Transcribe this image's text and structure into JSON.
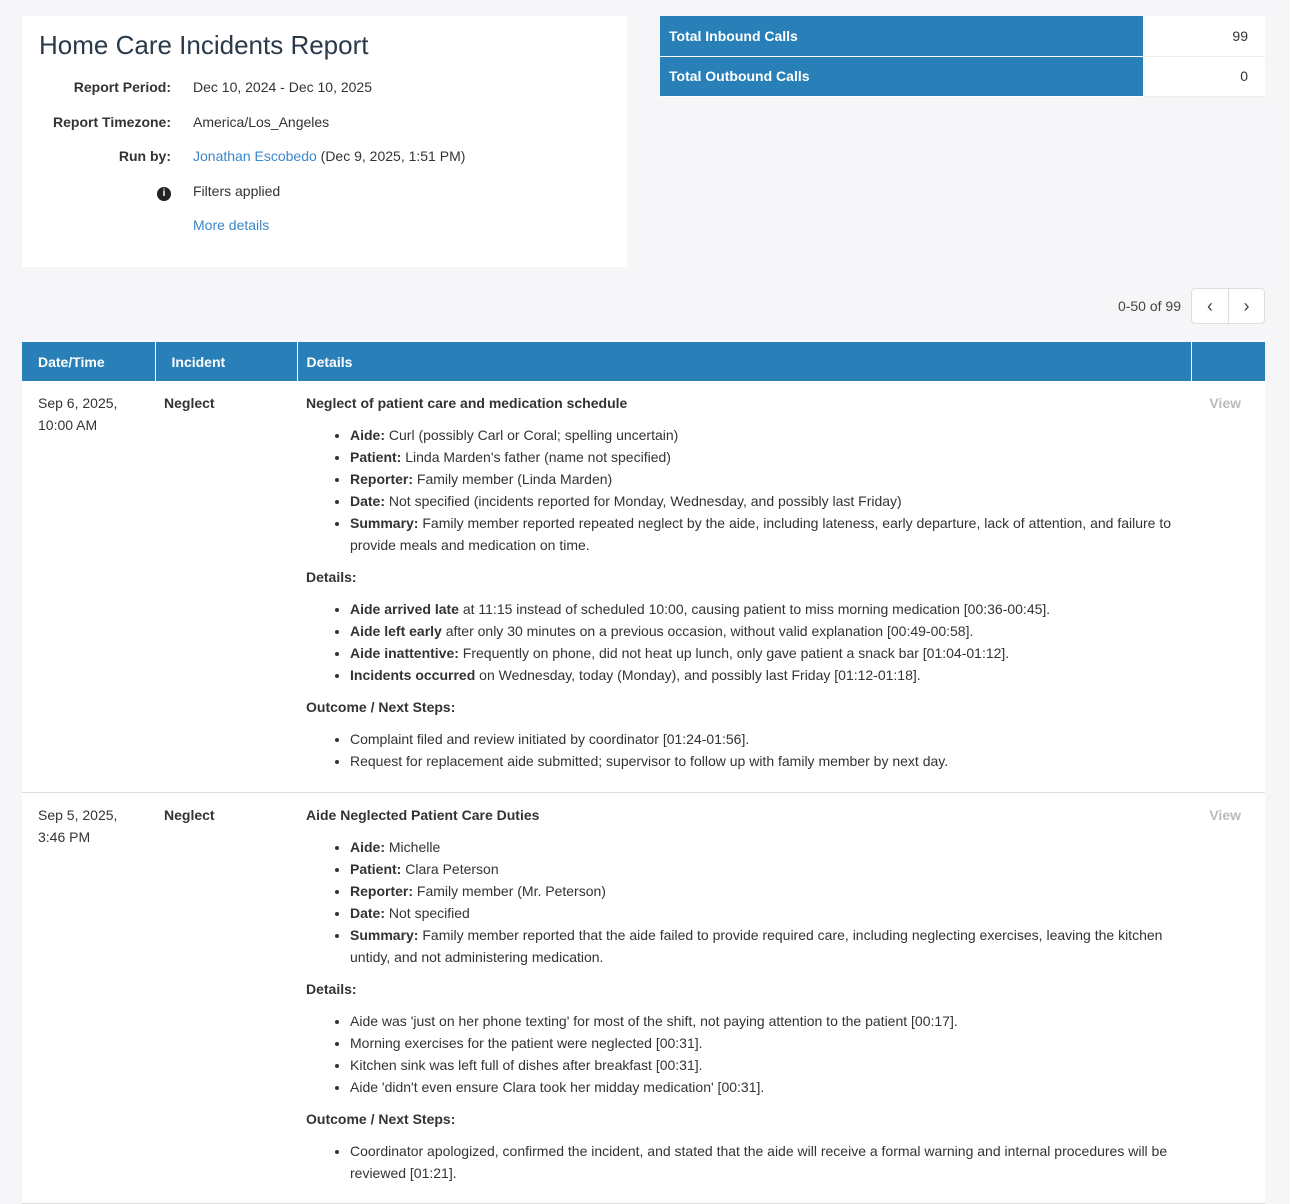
{
  "report": {
    "title": "Home Care Incidents Report",
    "meta": [
      {
        "label": "Report Period:",
        "value": "Dec 10, 2024 - Dec 10, 2025"
      },
      {
        "label": "Report Timezone:",
        "value": "America/Los_Angeles"
      }
    ],
    "run_by_label": "Run by:",
    "run_by_name": "Jonathan Escobedo",
    "run_by_time": "(Dec 9, 2025, 1:51 PM)",
    "filters": "Filters applied",
    "more_details": "More details"
  },
  "stats": [
    {
      "label": "Total Inbound Calls",
      "value": "99"
    },
    {
      "label": "Total Outbound Calls",
      "value": "0"
    }
  ],
  "pager": {
    "range": "0-50 of 99",
    "prev": "‹",
    "next": "›"
  },
  "table": {
    "headers": [
      "Date/Time",
      "Incident",
      "Details",
      ""
    ],
    "rows": [
      {
        "date": "Sep 6, 2025,",
        "time": "10:00 AM",
        "incident": "Neglect",
        "view": "View",
        "title": "Neglect of patient care and medication schedule",
        "summary": [
          {
            "b": "Aide:",
            "t": " Curl (possibly Carl or Coral; spelling uncertain)"
          },
          {
            "b": "Patient:",
            "t": " Linda Marden's father (name not specified)"
          },
          {
            "b": "Reporter:",
            "t": " Family member (Linda Marden)"
          },
          {
            "b": "Date:",
            "t": " Not specified (incidents reported for Monday, Wednesday, and possibly last Friday)"
          },
          {
            "b": "Summary:",
            "t": " Family member reported repeated neglect by the aide, including lateness, early departure, lack of attention, and failure to provide meals and medication on time."
          }
        ],
        "details_heading": "Details:",
        "details": [
          {
            "b": "Aide arrived late",
            "t": " at 11:15 instead of scheduled 10:00, causing patient to miss morning medication [00:36-00:45]."
          },
          {
            "b": "Aide left early",
            "t": " after only 30 minutes on a previous occasion, without valid explanation [00:49-00:58]."
          },
          {
            "b": "Aide inattentive:",
            "t": " Frequently on phone, did not heat up lunch, only gave patient a snack bar [01:04-01:12]."
          },
          {
            "b": "Incidents occurred",
            "t": " on Wednesday, today (Monday), and possibly last Friday [01:12-01:18]."
          }
        ],
        "outcome_heading": "Outcome / Next Steps:",
        "outcome": [
          {
            "b": "",
            "t": "Complaint filed and review initiated by coordinator [01:24-01:56]."
          },
          {
            "b": "",
            "t": "Request for replacement aide submitted; supervisor to follow up with family member by next day."
          }
        ]
      },
      {
        "date": "Sep 5, 2025,",
        "time": "3:46 PM",
        "incident": "Neglect",
        "view": "View",
        "title": "Aide Neglected Patient Care Duties",
        "summary": [
          {
            "b": "Aide:",
            "t": " Michelle"
          },
          {
            "b": "Patient:",
            "t": " Clara Peterson"
          },
          {
            "b": "Reporter:",
            "t": " Family member (Mr. Peterson)"
          },
          {
            "b": "Date:",
            "t": " Not specified"
          },
          {
            "b": "Summary:",
            "t": " Family member reported that the aide failed to provide required care, including neglecting exercises, leaving the kitchen untidy, and not administering medication."
          }
        ],
        "details_heading": "Details:",
        "details": [
          {
            "b": "",
            "t": "Aide was 'just on her phone texting' for most of the shift, not paying attention to the patient [00:17]."
          },
          {
            "b": "",
            "t": "Morning exercises for the patient were neglected [00:31]."
          },
          {
            "b": "",
            "t": "Kitchen sink was left full of dishes after breakfast [00:31]."
          },
          {
            "b": "",
            "t": "Aide 'didn't even ensure Clara took her midday medication' [00:31]."
          }
        ],
        "outcome_heading": "Outcome / Next Steps:",
        "outcome": [
          {
            "b": "",
            "t": "Coordinator apologized, confirmed the incident, and stated that the aide will receive a formal warning and internal procedures will be reviewed [01:21]."
          }
        ]
      }
    ]
  },
  "colors": {
    "header": "#2980b9",
    "link": "#3a87c8"
  }
}
